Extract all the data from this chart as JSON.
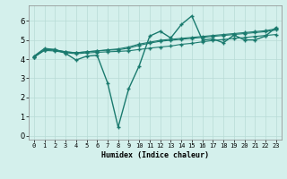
{
  "xlabel": "Humidex (Indice chaleur)",
  "xlim": [
    -0.5,
    23.5
  ],
  "ylim": [
    -0.2,
    6.8
  ],
  "xticks": [
    0,
    1,
    2,
    3,
    4,
    5,
    6,
    7,
    8,
    9,
    10,
    11,
    12,
    13,
    14,
    15,
    16,
    17,
    18,
    19,
    20,
    21,
    22,
    23
  ],
  "yticks": [
    0,
    1,
    2,
    3,
    4,
    5,
    6
  ],
  "bg_color": "#d4f0ec",
  "line_color": "#1a7a6e",
  "grid_color": "#b8dbd6",
  "lines": [
    {
      "x": [
        0,
        1,
        2,
        3,
        4,
        5,
        6,
        7,
        8,
        9,
        10,
        11,
        12,
        13,
        14,
        15,
        16,
        17,
        18,
        19,
        20,
        21,
        22,
        23
      ],
      "y": [
        4.15,
        4.55,
        4.5,
        4.3,
        3.95,
        4.15,
        4.2,
        2.75,
        0.45,
        2.45,
        3.65,
        5.2,
        5.45,
        5.1,
        5.8,
        6.25,
        5.0,
        5.05,
        4.85,
        5.25,
        5.0,
        5.0,
        5.2,
        5.65
      ]
    },
    {
      "x": [
        0,
        1,
        2,
        3,
        4,
        5,
        6,
        7,
        8,
        9,
        10,
        11,
        12,
        13,
        14,
        15,
        16,
        17,
        18,
        19,
        20,
        21,
        22,
        23
      ],
      "y": [
        4.1,
        4.45,
        4.42,
        4.33,
        4.28,
        4.32,
        4.35,
        4.38,
        4.4,
        4.43,
        4.5,
        4.57,
        4.63,
        4.68,
        4.77,
        4.82,
        4.9,
        4.97,
        5.02,
        5.08,
        5.12,
        5.18,
        5.23,
        5.28
      ]
    },
    {
      "x": [
        0,
        1,
        2,
        3,
        4,
        5,
        6,
        7,
        8,
        9,
        10,
        11,
        12,
        13,
        14,
        15,
        16,
        17,
        18,
        19,
        20,
        21,
        22,
        23
      ],
      "y": [
        4.1,
        4.48,
        4.48,
        4.38,
        4.33,
        4.38,
        4.42,
        4.47,
        4.48,
        4.57,
        4.72,
        4.83,
        4.93,
        4.98,
        5.03,
        5.08,
        5.13,
        5.18,
        5.23,
        5.28,
        5.33,
        5.38,
        5.43,
        5.52
      ]
    },
    {
      "x": [
        0,
        1,
        2,
        3,
        4,
        5,
        6,
        7,
        8,
        9,
        10,
        11,
        12,
        13,
        14,
        15,
        16,
        17,
        18,
        19,
        20,
        21,
        22,
        23
      ],
      "y": [
        4.1,
        4.48,
        4.48,
        4.38,
        4.33,
        4.38,
        4.43,
        4.48,
        4.53,
        4.63,
        4.78,
        4.88,
        4.98,
        5.03,
        5.08,
        5.13,
        5.18,
        5.23,
        5.28,
        5.33,
        5.38,
        5.43,
        5.48,
        5.58
      ]
    }
  ]
}
